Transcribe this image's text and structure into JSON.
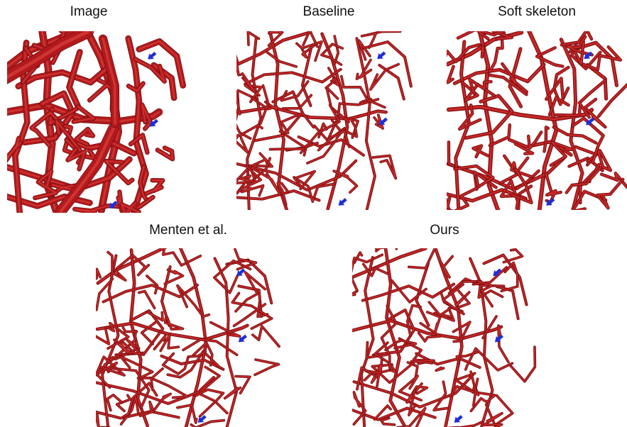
{
  "panels": [
    {
      "title": "Image",
      "style": "thick",
      "seed": 11
    },
    {
      "title": "Baseline",
      "style": "thin",
      "seed": 23
    },
    {
      "title": "Soft skeleton",
      "style": "medium",
      "seed": 37
    },
    {
      "title": "Menten et al.",
      "style": "thin",
      "seed": 41
    },
    {
      "title": "Ours",
      "style": "thin",
      "seed": 53
    }
  ],
  "colors": {
    "vessel": "#b3191c",
    "vessel_dark": "#6e0d0e",
    "vessel_light": "#d9403c",
    "arrow": "#1f2fd6",
    "background": "#ffffff"
  },
  "markers": {
    "icon": "blue-arrow-icon",
    "count_per_panel": 3
  }
}
